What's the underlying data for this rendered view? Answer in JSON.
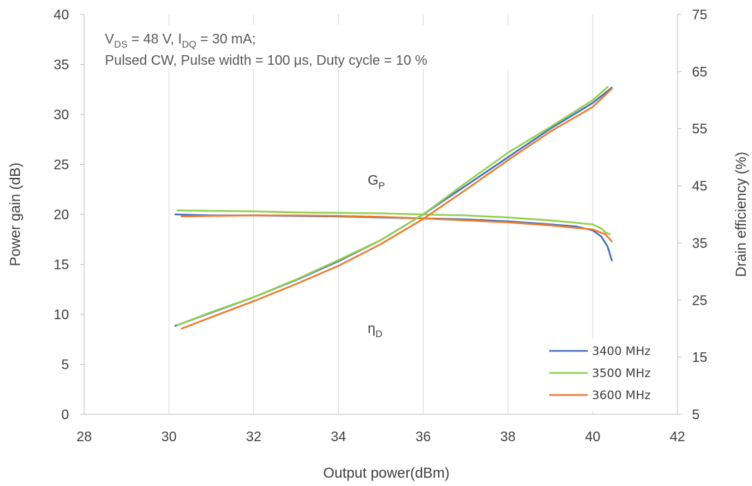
{
  "chart_data": {
    "type": "line",
    "xlabel": "Output power(dBm)",
    "ylabel": "Power gain (dB)",
    "y2label": "Drain efficiency (%)",
    "xlim": [
      28,
      42
    ],
    "xticks": [
      "28",
      "30",
      "32",
      "34",
      "36",
      "38",
      "40",
      "42"
    ],
    "ylim": [
      0,
      40
    ],
    "yticks": [
      "0",
      "5",
      "10",
      "15",
      "20",
      "25",
      "30",
      "35",
      "40"
    ],
    "y2lim": [
      5,
      75
    ],
    "y2ticks": [
      "5",
      "15",
      "25",
      "35",
      "45",
      "55",
      "65",
      "75"
    ],
    "grid": "vertical",
    "legend_position": "bottom-right",
    "conditions": {
      "line1": {
        "v": "V",
        "v_sub": "DS",
        "v_rest": " = 48 V, I",
        "i_sub": "DQ",
        "i_rest": " = 30 mA;"
      },
      "line2": "Pulsed CW, Pulse width = 100 μs, Duty cycle = 10 %"
    },
    "curve_labels": {
      "gain": {
        "main": "G",
        "sub": "P"
      },
      "efficiency": {
        "main": "η",
        "sub": "D"
      }
    },
    "series": [
      {
        "name": "3400 MHz",
        "color": "#4472C4",
        "axis": "gain",
        "x": [
          30.15,
          31,
          32,
          33,
          34,
          35,
          36,
          37,
          38,
          39,
          39.6,
          40,
          40.2,
          40.35,
          40.45
        ],
        "y": [
          20.0,
          19.9,
          19.9,
          19.85,
          19.8,
          19.7,
          19.6,
          19.5,
          19.3,
          19.0,
          18.8,
          18.4,
          17.8,
          16.8,
          15.4
        ]
      },
      {
        "name": "3500 MHz",
        "color": "#92D050",
        "axis": "gain",
        "x": [
          30.2,
          31,
          32,
          33,
          34,
          35,
          36,
          37,
          38,
          39,
          40,
          40.2,
          40.3,
          40.4
        ],
        "y": [
          20.4,
          20.35,
          20.3,
          20.2,
          20.15,
          20.1,
          20.0,
          19.9,
          19.7,
          19.4,
          19.0,
          18.6,
          18.2,
          18.0
        ]
      },
      {
        "name": "3600 MHz",
        "color": "#ED7D31",
        "axis": "gain",
        "x": [
          30.3,
          31,
          32,
          33,
          34,
          35,
          36,
          37,
          38,
          39,
          40,
          40.3,
          40.45
        ],
        "y": [
          19.8,
          19.85,
          19.9,
          19.9,
          19.85,
          19.75,
          19.6,
          19.4,
          19.2,
          18.9,
          18.5,
          18.0,
          17.3
        ]
      },
      {
        "name": "3400 MHz",
        "color": "#4472C4",
        "axis": "efficiency",
        "x": [
          30.15,
          31,
          32,
          33,
          34,
          35,
          36,
          37,
          38,
          39,
          40,
          40.45
        ],
        "y": [
          20.5,
          22.8,
          25.5,
          28.5,
          31.8,
          35.5,
          40.0,
          45.0,
          50.0,
          55.0,
          59.5,
          62.2
        ]
      },
      {
        "name": "3500 MHz",
        "color": "#92D050",
        "axis": "efficiency",
        "x": [
          30.2,
          31,
          32,
          33,
          34,
          35,
          36,
          37,
          38,
          39,
          40,
          40.35
        ],
        "y": [
          20.6,
          22.9,
          25.5,
          28.6,
          32.0,
          35.5,
          40.0,
          45.5,
          50.8,
          55.3,
          60.0,
          62.3
        ]
      },
      {
        "name": "3600 MHz",
        "color": "#ED7D31",
        "axis": "efficiency",
        "x": [
          30.3,
          31,
          32,
          33,
          34,
          35,
          36,
          37,
          38,
          39,
          40,
          40.45
        ],
        "y": [
          20.0,
          22.0,
          24.8,
          27.8,
          31.0,
          34.8,
          39.2,
          44.3,
          49.5,
          54.5,
          58.8,
          62.0
        ]
      }
    ],
    "legend": [
      {
        "name": "3400 MHz",
        "color": "#4472C4"
      },
      {
        "name": "3500 MHz",
        "color": "#92D050"
      },
      {
        "name": "3600 MHz",
        "color": "#ED7D31"
      }
    ]
  }
}
